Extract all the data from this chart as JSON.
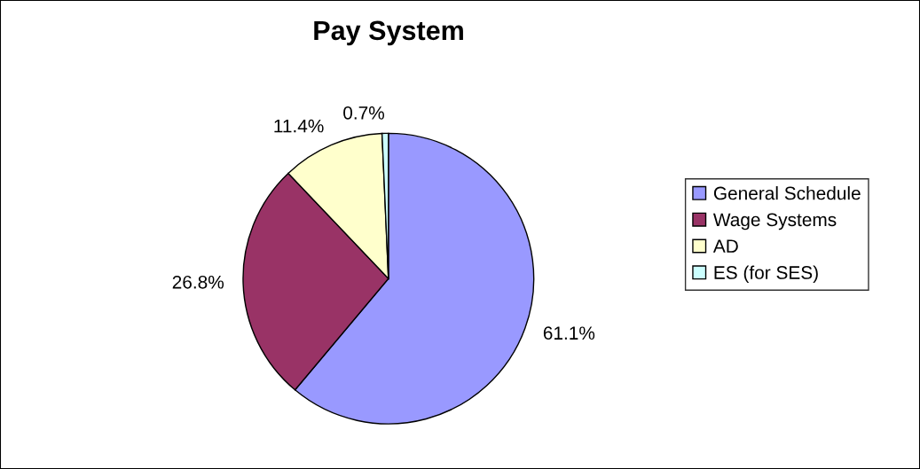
{
  "chart_data": {
    "type": "pie",
    "title": "Pay System",
    "categories": [
      "General Schedule",
      "Wage Systems",
      "AD",
      "ES (for SES)"
    ],
    "values": [
      61.1,
      26.8,
      11.4,
      0.7
    ],
    "colors": [
      "#9999ff",
      "#993366",
      "#ffffcc",
      "#ccffff"
    ],
    "value_labels": [
      "61.1%",
      "26.8%",
      "11.4%",
      "0.7%"
    ],
    "legend": "right"
  }
}
